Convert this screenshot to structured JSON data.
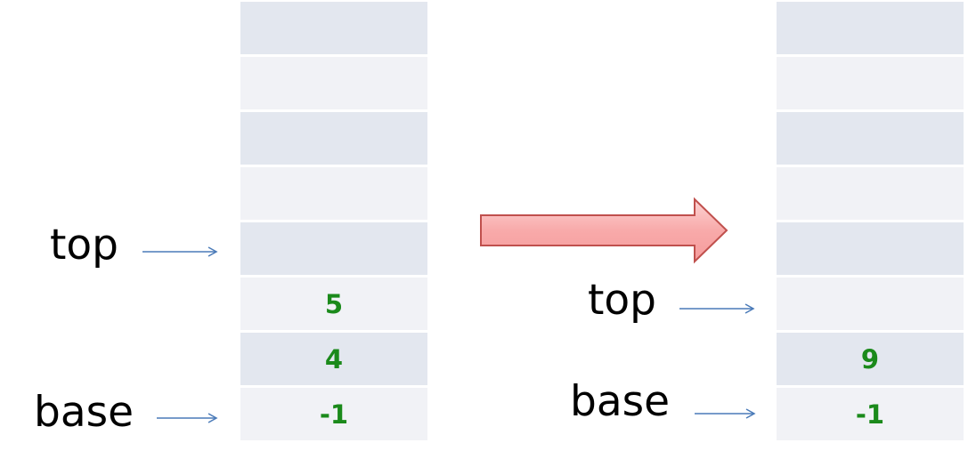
{
  "left_stack": {
    "cells": [
      "",
      "",
      "",
      "",
      "",
      "5",
      "4",
      "-1"
    ]
  },
  "right_stack": {
    "cells": [
      "",
      "",
      "",
      "",
      "",
      "",
      "9",
      "-1"
    ]
  },
  "left_labels": {
    "top": "top",
    "base": "base"
  },
  "right_labels": {
    "top": "top",
    "base": "base"
  },
  "colors": {
    "cell_dark": "#e3e7ef",
    "cell_light": "#f1f2f6",
    "value_text": "#1b8a1b",
    "pointer_arrow": "#4a7ab8",
    "transition_arrow_fill": "#f7a3a3",
    "transition_arrow_stroke": "#c0504d"
  }
}
